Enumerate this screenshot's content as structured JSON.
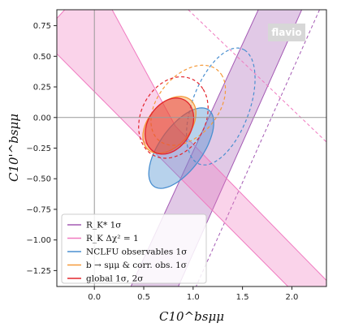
{
  "brand": "flavio",
  "chart_data": {
    "type": "scatter",
    "xlabel": "C10^bsμμ",
    "ylabel": "C10'^bsμμ",
    "xlim": [
      -0.38,
      2.35
    ],
    "ylim": [
      -1.38,
      0.88
    ],
    "xticks": [
      "0.0",
      "0.5",
      "1.0",
      "1.5",
      "2.0"
    ],
    "yticks": [
      "0.75",
      "0.50",
      "0.25",
      "0.00",
      "−0.25",
      "−0.50",
      "−0.75",
      "−1.00",
      "−1.25"
    ],
    "xtick_values": [
      0,
      0.5,
      1.0,
      1.5,
      2.0
    ],
    "ytick_values": [
      0.75,
      0.5,
      0.25,
      0,
      -0.25,
      -0.5,
      -0.75,
      -1.0,
      -1.25
    ],
    "reference_lines": {
      "x": 0,
      "y": 0
    },
    "legend_placement": "lower-left",
    "legend": [
      {
        "label": "R_K*  1σ",
        "color": "#a45ab4"
      },
      {
        "label": "R_K  Δχ² = 1",
        "color": "#f07ac0"
      },
      {
        "label": "NCLFU observables 1σ",
        "color": "#4a8fd0"
      },
      {
        "label": "b → sμμ & corr. obs. 1σ",
        "color": "#f59a3a"
      },
      {
        "label": "global 1σ, 2σ",
        "color": "#e3262e"
      }
    ],
    "regions": [
      {
        "name": "R_K* 1σ band",
        "color": "#a45ab4",
        "fill_opacity": 0.33,
        "polygon": [
          [
            1.66,
            0.88
          ],
          [
            2.1,
            0.88
          ],
          [
            0.85,
            -1.38
          ],
          [
            0.37,
            -1.38
          ]
        ],
        "dashed": [
          [
            [
              2.28,
              0.88
            ],
            [
              1.03,
              -1.38
            ]
          ]
        ]
      },
      {
        "name": "R_K Δχ²=1 band",
        "color": "#f07ac0",
        "fill_opacity": 0.33,
        "polygon": [
          [
            -0.38,
            0.81
          ],
          [
            -0.38,
            0.52
          ],
          [
            1.96,
            -1.38
          ],
          [
            2.35,
            -1.38
          ],
          [
            2.35,
            -1.33
          ],
          [
            0.82,
            -0.07
          ],
          [
            0.18,
            0.88
          ],
          [
            -0.3,
            0.88
          ]
        ],
        "dashed": [
          [
            [
              0.95,
              0.88
            ],
            [
              2.35,
              -0.2
            ]
          ]
        ]
      },
      {
        "name": "NCLFU observables 1σ ellipse",
        "color": "#4a8fd0",
        "ellipse": {
          "cx": 0.88,
          "cy": -0.25,
          "rx": 0.42,
          "ry": 0.2,
          "angle_deg": 45
        },
        "dashed_ellipse": {
          "cx": 1.28,
          "cy": 0.09,
          "rx": 0.52,
          "ry": 0.28,
          "angle_deg": 62
        }
      },
      {
        "name": "b→sμμ & corr. obs. 1σ ellipse",
        "color": "#f59a3a",
        "ellipse": {
          "cx": 0.76,
          "cy": -0.06,
          "rx": 0.3,
          "ry": 0.19,
          "angle_deg": 35
        },
        "dashed_ellipse": {
          "cx": 0.95,
          "cy": 0.1,
          "rx": 0.42,
          "ry": 0.27,
          "angle_deg": 35
        }
      },
      {
        "name": "global 1σ, 2σ",
        "color": "#e3262e",
        "ellipse": {
          "cx": 0.76,
          "cy": -0.07,
          "rx": 0.27,
          "ry": 0.2,
          "angle_deg": 38
        },
        "dashed_ellipse": {
          "cx": 0.8,
          "cy": 0.0,
          "rx": 0.38,
          "ry": 0.3,
          "angle_deg": 38
        }
      }
    ]
  }
}
